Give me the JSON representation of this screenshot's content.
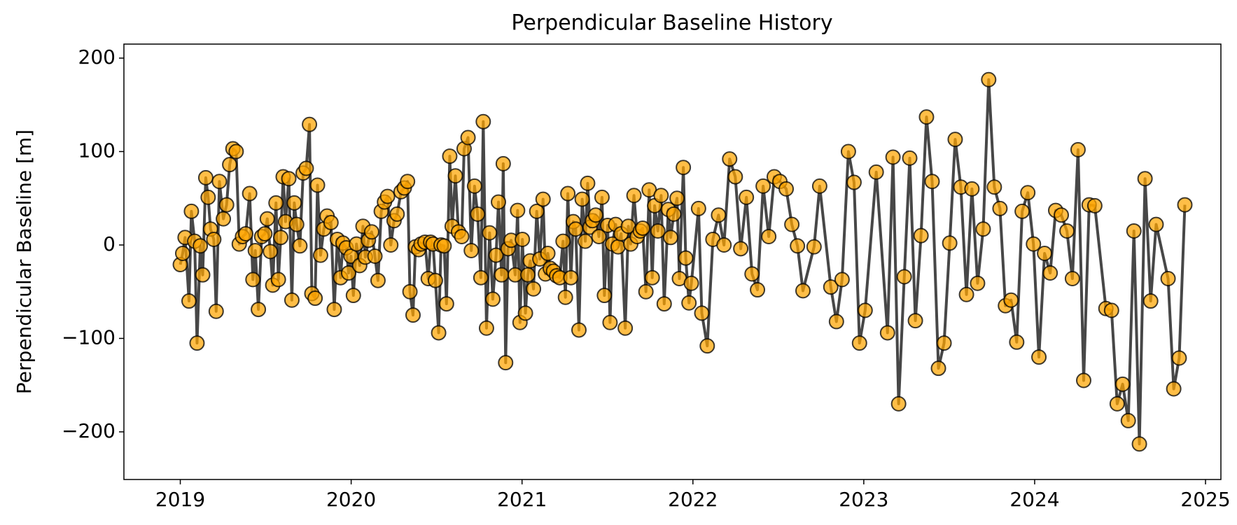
{
  "chart_data": {
    "type": "line",
    "title": "Perpendicular Baseline History",
    "ylabel": "Perpendicular Baseline [m]",
    "x": [
      2019.0,
      2019.014,
      2019.028,
      2019.051,
      2019.065,
      2019.084,
      2019.098,
      2019.117,
      2019.131,
      2019.149,
      2019.163,
      2019.177,
      2019.196,
      2019.21,
      2019.229,
      2019.252,
      2019.271,
      2019.289,
      2019.308,
      2019.327,
      2019.345,
      2019.364,
      2019.383,
      2019.406,
      2019.425,
      2019.439,
      2019.457,
      2019.476,
      2019.495,
      2019.509,
      2019.527,
      2019.541,
      2019.56,
      2019.574,
      2019.588,
      2019.602,
      2019.616,
      2019.635,
      2019.653,
      2019.667,
      2019.681,
      2019.7,
      2019.719,
      2019.737,
      2019.756,
      2019.77,
      2019.789,
      2019.803,
      2019.821,
      2019.84,
      2019.859,
      2019.882,
      2019.901,
      2019.919,
      2019.938,
      2019.952,
      2019.971,
      2019.985,
      2019.999,
      2020.013,
      2020.031,
      2020.05,
      2020.069,
      2020.083,
      2020.101,
      2020.12,
      2020.139,
      2020.157,
      2020.176,
      2020.195,
      2020.213,
      2020.232,
      2020.251,
      2020.269,
      2020.292,
      2020.311,
      2020.33,
      2020.344,
      2020.362,
      2020.376,
      2020.395,
      2020.409,
      2020.432,
      2020.451,
      2020.465,
      2020.479,
      2020.493,
      2020.512,
      2020.526,
      2020.544,
      2020.558,
      2020.577,
      2020.591,
      2020.61,
      2020.628,
      2020.647,
      2020.661,
      2020.684,
      2020.703,
      2020.722,
      2020.74,
      2020.759,
      2020.773,
      2020.792,
      2020.81,
      2020.829,
      2020.848,
      2020.862,
      2020.88,
      2020.89,
      2020.904,
      2020.918,
      2020.936,
      2020.96,
      2020.974,
      2020.988,
      2021.002,
      2021.02,
      2021.034,
      2021.048,
      2021.067,
      2021.086,
      2021.104,
      2021.123,
      2021.137,
      2021.151,
      2021.165,
      2021.184,
      2021.202,
      2021.221,
      2021.24,
      2021.254,
      2021.268,
      2021.286,
      2021.3,
      2021.314,
      2021.333,
      2021.352,
      2021.37,
      2021.384,
      2021.398,
      2021.412,
      2021.431,
      2021.45,
      2021.468,
      2021.482,
      2021.501,
      2021.515,
      2021.529,
      2021.548,
      2021.562,
      2021.58,
      2021.604,
      2021.622,
      2021.636,
      2021.655,
      2021.674,
      2021.692,
      2021.706,
      2021.725,
      2021.744,
      2021.762,
      2021.776,
      2021.795,
      2021.814,
      2021.832,
      2021.856,
      2021.87,
      2021.888,
      2021.907,
      2021.921,
      2021.944,
      2021.958,
      2021.977,
      2021.991,
      2022.033,
      2022.052,
      2022.084,
      2022.117,
      2022.15,
      2022.182,
      2022.215,
      2022.248,
      2022.28,
      2022.313,
      2022.346,
      2022.378,
      2022.411,
      2022.444,
      2022.476,
      2022.509,
      2022.546,
      2022.579,
      2022.612,
      2022.644,
      2022.709,
      2022.742,
      2022.807,
      2022.84,
      2022.873,
      2022.91,
      2022.943,
      2022.975,
      2023.008,
      2023.073,
      2023.139,
      2023.171,
      2023.204,
      2023.237,
      2023.269,
      2023.302,
      2023.335,
      2023.367,
      2023.4,
      2023.437,
      2023.47,
      2023.503,
      2023.535,
      2023.568,
      2023.601,
      2023.633,
      2023.666,
      2023.699,
      2023.731,
      2023.764,
      2023.797,
      2023.829,
      2023.862,
      2023.895,
      2023.927,
      2023.96,
      2023.993,
      2024.025,
      2024.058,
      2024.091,
      2024.123,
      2024.156,
      2024.189,
      2024.221,
      2024.254,
      2024.287,
      2024.319,
      2024.352,
      2024.417,
      2024.45,
      2024.483,
      2024.515,
      2024.548,
      2024.581,
      2024.613,
      2024.646,
      2024.679,
      2024.711,
      2024.781,
      2024.814,
      2024.846,
      2024.879
    ],
    "values": [
      -21,
      -9,
      8,
      -60,
      36,
      4,
      -105,
      -1,
      -32,
      72,
      51,
      17,
      6,
      -71,
      68,
      28,
      43,
      86,
      103,
      100,
      1,
      9,
      12,
      55,
      -37,
      -6,
      -69,
      9,
      12,
      28,
      -7,
      -43,
      45,
      -37,
      8,
      73,
      25,
      71,
      -59,
      45,
      22,
      -1,
      77,
      82,
      129,
      -52,
      -57,
      64,
      -11,
      17,
      31,
      24,
      -69,
      6,
      -35,
      2,
      -3,
      -30,
      -12,
      -54,
      1,
      -22,
      20,
      -13,
      5,
      14,
      -12,
      -38,
      36,
      46,
      52,
      0,
      26,
      33,
      57,
      61,
      68,
      -50,
      -75,
      -2,
      -5,
      1,
      3,
      -36,
      3,
      1,
      -38,
      -94,
      0,
      -1,
      -63,
      95,
      20,
      74,
      14,
      9,
      103,
      115,
      -6,
      63,
      33,
      -35,
      132,
      -89,
      13,
      -58,
      -11,
      46,
      -32,
      87,
      -126,
      -4,
      5,
      -32,
      37,
      -83,
      6,
      -73,
      -32,
      -17,
      -47,
      36,
      -15,
      49,
      -31,
      -9,
      -25,
      -28,
      -33,
      -35,
      4,
      -56,
      55,
      -35,
      25,
      17,
      -91,
      49,
      4,
      66,
      19,
      26,
      32,
      9,
      51,
      -54,
      21,
      -83,
      1,
      22,
      -2,
      12,
      -89,
      20,
      1,
      53,
      9,
      15,
      18,
      -50,
      59,
      -35,
      42,
      15,
      53,
      -63,
      38,
      8,
      33,
      50,
      -36,
      83,
      -14,
      -62,
      -41,
      39,
      -73,
      -108,
      6,
      32,
      0,
      92,
      73,
      -4,
      51,
      -31,
      -48,
      63,
      9,
      73,
      68,
      60,
      22,
      -1,
      -49,
      -2,
      63,
      -45,
      -82,
      -37,
      100,
      67,
      -105,
      -70,
      78,
      -94,
      94,
      -170,
      -34,
      93,
      -81,
      10,
      137,
      68,
      -132,
      -105,
      2,
      113,
      62,
      -53,
      60,
      -41,
      17,
      177,
      62,
      39,
      -65,
      -59,
      -104,
      36,
      56,
      1,
      -120,
      -9,
      -30,
      37,
      32,
      15,
      -36,
      102,
      -145,
      43,
      42,
      -68,
      -70,
      -170,
      -149,
      -188,
      15,
      -213,
      71,
      -60,
      22,
      -36,
      -154,
      -121,
      43
    ],
    "line_color": "#333333",
    "marker_color": "#ffa500",
    "xlim": [
      2018.67,
      2025.09
    ],
    "xticks": [
      2019,
      2020,
      2021,
      2022,
      2023,
      2024,
      2025
    ],
    "ylim": [
      -251,
      215
    ],
    "yticks": [
      {
        "value": -200,
        "label": "−200"
      },
      {
        "value": -100,
        "label": "−100"
      },
      0,
      100,
      200
    ]
  }
}
